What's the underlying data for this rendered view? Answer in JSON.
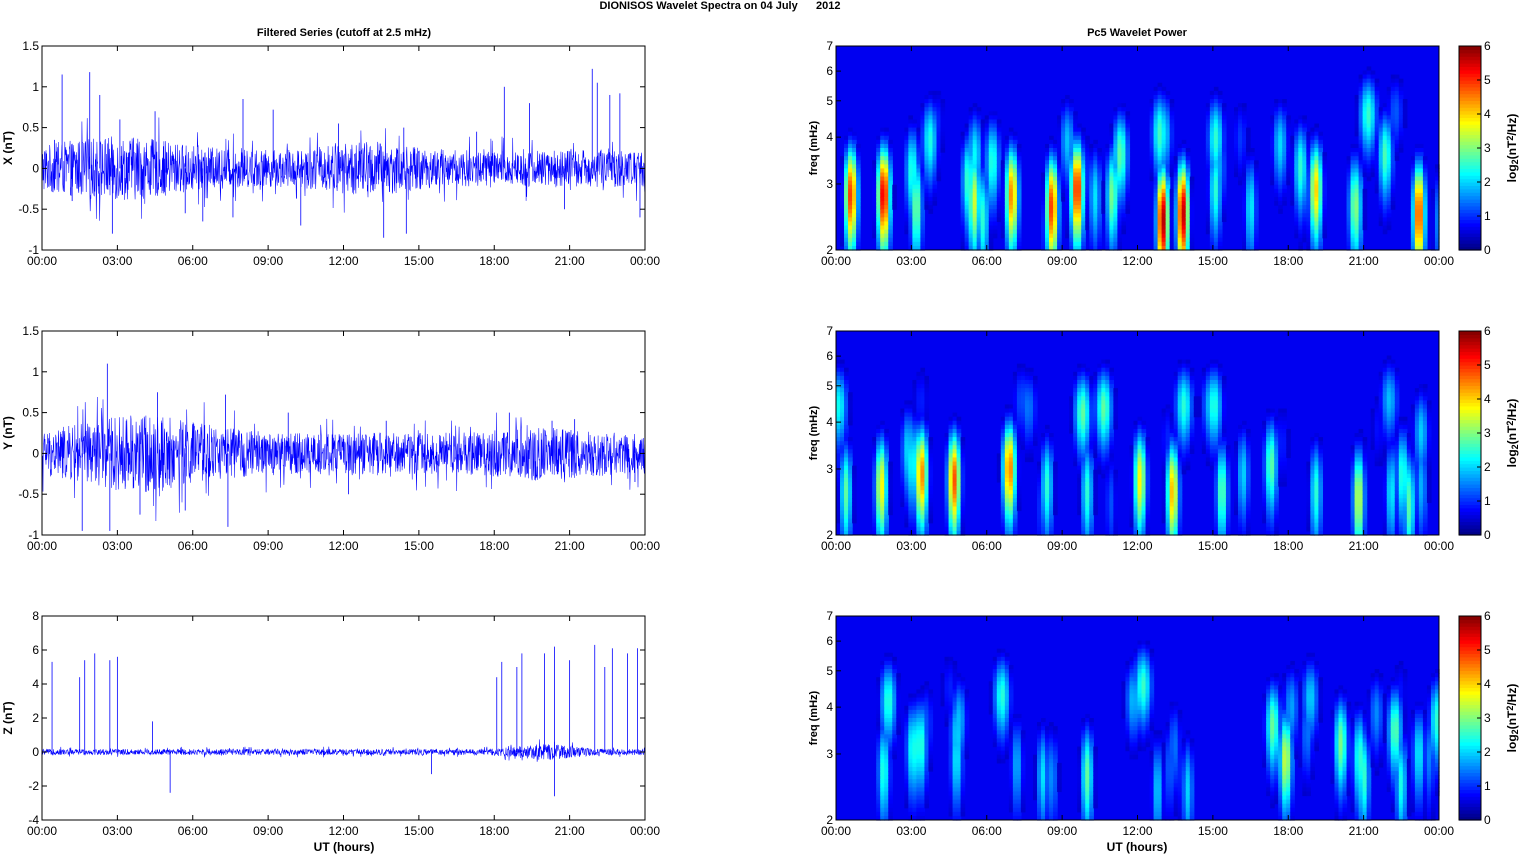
{
  "figure": {
    "title": "DIONISOS Wavelet Spectra on 04 July      2012",
    "left_column_title": "Filtered Series (cutoff at 2.5 mHz)",
    "right_column_title": "Pc5 Wavelet Power",
    "xlabel": "UT (hours)"
  },
  "chart_data": [
    {
      "type": "line",
      "ylabel": "X (nT)",
      "xlim": [
        0,
        24
      ],
      "ylim": [
        -1,
        1.5
      ],
      "x_ticks": [
        "00:00",
        "03:00",
        "06:00",
        "09:00",
        "12:00",
        "15:00",
        "18:00",
        "21:00",
        "00:00"
      ],
      "y_ticks": [
        "-1",
        "-0.5",
        "0",
        "0.5",
        "1",
        "1.5"
      ],
      "color": "#0000ff",
      "series": [
        {
          "points": [
            [
              0,
              0
            ],
            [
              0.5,
              0.35
            ],
            [
              0.8,
              1.15
            ],
            [
              1.2,
              -0.4
            ],
            [
              1.9,
              1.18
            ],
            [
              2.3,
              0.9
            ],
            [
              2.8,
              -0.8
            ],
            [
              3.1,
              0.6
            ],
            [
              4.5,
              0.7
            ],
            [
              5.7,
              -0.55
            ],
            [
              6.4,
              -0.65
            ],
            [
              7.6,
              -0.6
            ],
            [
              8.0,
              0.85
            ],
            [
              9.2,
              0.72
            ],
            [
              10.3,
              -0.7
            ],
            [
              11.8,
              0.55
            ],
            [
              13.6,
              -0.85
            ],
            [
              14.4,
              0.5
            ],
            [
              14.5,
              -0.8
            ],
            [
              17.3,
              0.45
            ],
            [
              18.4,
              1.0
            ],
            [
              19.4,
              0.8
            ],
            [
              20.8,
              -0.5
            ],
            [
              21.9,
              1.22
            ],
            [
              22.1,
              1.05
            ],
            [
              22.6,
              0.9
            ],
            [
              23.0,
              0.92
            ],
            [
              23.8,
              -0.6
            ],
            [
              24,
              0
            ]
          ]
        }
      ]
    },
    {
      "type": "line",
      "ylabel": "Y (nT)",
      "xlim": [
        0,
        24
      ],
      "ylim": [
        -1,
        1.5
      ],
      "x_ticks": [
        "00:00",
        "03:00",
        "06:00",
        "09:00",
        "12:00",
        "15:00",
        "18:00",
        "21:00",
        "00:00"
      ],
      "y_ticks": [
        "-1",
        "-0.5",
        "0",
        "0.5",
        "1",
        "1.5"
      ],
      "color": "#0000ff",
      "series": [
        {
          "points": [
            [
              0,
              0
            ],
            [
              1.6,
              -0.95
            ],
            [
              2.6,
              1.1
            ],
            [
              2.7,
              -0.95
            ],
            [
              3.9,
              -0.75
            ],
            [
              4.6,
              0.75
            ],
            [
              5.7,
              -0.7
            ],
            [
              7.3,
              0.72
            ],
            [
              7.4,
              -0.9
            ],
            [
              9.8,
              0.5
            ],
            [
              12.2,
              -0.5
            ],
            [
              13.7,
              0.4
            ],
            [
              18.6,
              0.5
            ],
            [
              20.3,
              0.4
            ],
            [
              21.2,
              0.42
            ],
            [
              23.6,
              -0.35
            ],
            [
              24,
              0
            ]
          ]
        }
      ]
    },
    {
      "type": "line",
      "ylabel": "Z (nT)",
      "xlim": [
        0,
        24
      ],
      "ylim": [
        -4,
        8
      ],
      "x_ticks": [
        "00:00",
        "03:00",
        "06:00",
        "09:00",
        "12:00",
        "15:00",
        "18:00",
        "21:00",
        "00:00"
      ],
      "y_ticks": [
        "-4",
        "-2",
        "0",
        "2",
        "4",
        "6",
        "8"
      ],
      "color": "#0000ff",
      "series": [
        {
          "points": [
            [
              0,
              0
            ],
            [
              0.4,
              5.3
            ],
            [
              1.5,
              4.4
            ],
            [
              1.7,
              5.4
            ],
            [
              2.1,
              5.8
            ],
            [
              2.7,
              5.4
            ],
            [
              3.0,
              5.6
            ],
            [
              4.4,
              1.8
            ],
            [
              5.1,
              -2.4
            ],
            [
              15.5,
              -1.3
            ],
            [
              18.1,
              4.4
            ],
            [
              18.3,
              5.3
            ],
            [
              18.9,
              5.0
            ],
            [
              19.1,
              5.8
            ],
            [
              20.0,
              5.8
            ],
            [
              20.4,
              6.2
            ],
            [
              20.4,
              -2.6
            ],
            [
              21.0,
              5.4
            ],
            [
              22.0,
              6.3
            ],
            [
              22.4,
              5.0
            ],
            [
              22.7,
              6.1
            ],
            [
              23.3,
              5.8
            ],
            [
              23.7,
              6.1
            ],
            [
              24,
              0
            ]
          ]
        }
      ]
    },
    {
      "type": "heatmap",
      "ylabel": "freq (mHz)",
      "xlim": [
        0,
        24
      ],
      "ylim": [
        2,
        7
      ],
      "yscale": "log",
      "x_ticks": [
        "00:00",
        "03:00",
        "06:00",
        "09:00",
        "12:00",
        "15:00",
        "18:00",
        "21:00",
        "00:00"
      ],
      "y_ticks": [
        "2",
        "3",
        "4",
        "5",
        "6",
        "7"
      ],
      "colormap": "jet",
      "clim": [
        0,
        6
      ],
      "colorbar_label": "log2(nT2/Hz)",
      "colorbar_ticks": [
        "0",
        "1",
        "2",
        "3",
        "4",
        "5",
        "6"
      ],
      "blobs": [
        [
          0.6,
          2.8,
          5.0
        ],
        [
          1.9,
          2.8,
          5.5
        ],
        [
          3.2,
          2.6,
          3.0
        ],
        [
          5.5,
          2.7,
          3.5
        ],
        [
          7.0,
          2.8,
          4.5
        ],
        [
          8.6,
          2.6,
          5.0
        ],
        [
          9.6,
          2.9,
          5.2
        ],
        [
          11.0,
          2.8,
          3.0
        ],
        [
          13.0,
          2.4,
          5.8
        ],
        [
          13.8,
          2.5,
          5.7
        ],
        [
          15.1,
          2.9,
          2.5
        ],
        [
          16.5,
          2.6,
          2.2
        ],
        [
          19.1,
          2.9,
          4.0
        ],
        [
          20.7,
          2.6,
          3.0
        ],
        [
          23.2,
          2.5,
          5.0
        ]
      ]
    },
    {
      "type": "heatmap",
      "ylabel": "freq (mHz)",
      "xlim": [
        0,
        24
      ],
      "ylim": [
        2,
        7
      ],
      "yscale": "log",
      "x_ticks": [
        "00:00",
        "03:00",
        "06:00",
        "09:00",
        "12:00",
        "15:00",
        "18:00",
        "21:00",
        "00:00"
      ],
      "y_ticks": [
        "2",
        "3",
        "4",
        "5",
        "6",
        "7"
      ],
      "colormap": "jet",
      "clim": [
        0,
        6
      ],
      "colorbar_label": "log2(nT2/Hz)",
      "colorbar_ticks": [
        "0",
        "1",
        "2",
        "3",
        "4",
        "5",
        "6"
      ],
      "blobs": [
        [
          0.4,
          2.6,
          2.8
        ],
        [
          1.8,
          2.7,
          3.8
        ],
        [
          3.4,
          2.9,
          4.5
        ],
        [
          4.7,
          2.8,
          4.8
        ],
        [
          6.9,
          3.0,
          4.6
        ],
        [
          8.4,
          2.7,
          2.5
        ],
        [
          10.0,
          2.6,
          2.5
        ],
        [
          12.1,
          2.8,
          3.8
        ],
        [
          13.4,
          2.6,
          4.2
        ],
        [
          16.2,
          2.9,
          2.0
        ],
        [
          19.1,
          2.6,
          2.5
        ],
        [
          20.8,
          2.5,
          3.5
        ],
        [
          22.1,
          2.6,
          2.2
        ],
        [
          23.3,
          2.7,
          1.8
        ]
      ]
    },
    {
      "type": "heatmap",
      "ylabel": "freq (mHz)",
      "xlim": [
        0,
        24
      ],
      "ylim": [
        2,
        7
      ],
      "yscale": "log",
      "x_ticks": [
        "00:00",
        "03:00",
        "06:00",
        "09:00",
        "12:00",
        "15:00",
        "18:00",
        "21:00",
        "00:00"
      ],
      "y_ticks": [
        "2",
        "3",
        "4",
        "5",
        "6",
        "7"
      ],
      "colormap": "jet",
      "clim": [
        0,
        6
      ],
      "colorbar_label": "log2(nT2/Hz)",
      "colorbar_ticks": [
        "0",
        "1",
        "2",
        "3",
        "4",
        "5",
        "6"
      ],
      "blobs": [
        [
          1.9,
          2.7,
          2.5
        ],
        [
          4.8,
          2.9,
          2.2
        ],
        [
          7.2,
          2.8,
          1.8
        ],
        [
          8.6,
          2.6,
          1.6
        ],
        [
          12.8,
          2.4,
          2.0
        ],
        [
          14.0,
          2.4,
          2.0
        ],
        [
          17.9,
          2.9,
          3.5
        ],
        [
          20.1,
          3.2,
          3.0
        ],
        [
          21.0,
          2.6,
          2.6
        ],
        [
          22.5,
          2.5,
          2.4
        ],
        [
          23.2,
          3.0,
          2.2
        ]
      ]
    }
  ]
}
